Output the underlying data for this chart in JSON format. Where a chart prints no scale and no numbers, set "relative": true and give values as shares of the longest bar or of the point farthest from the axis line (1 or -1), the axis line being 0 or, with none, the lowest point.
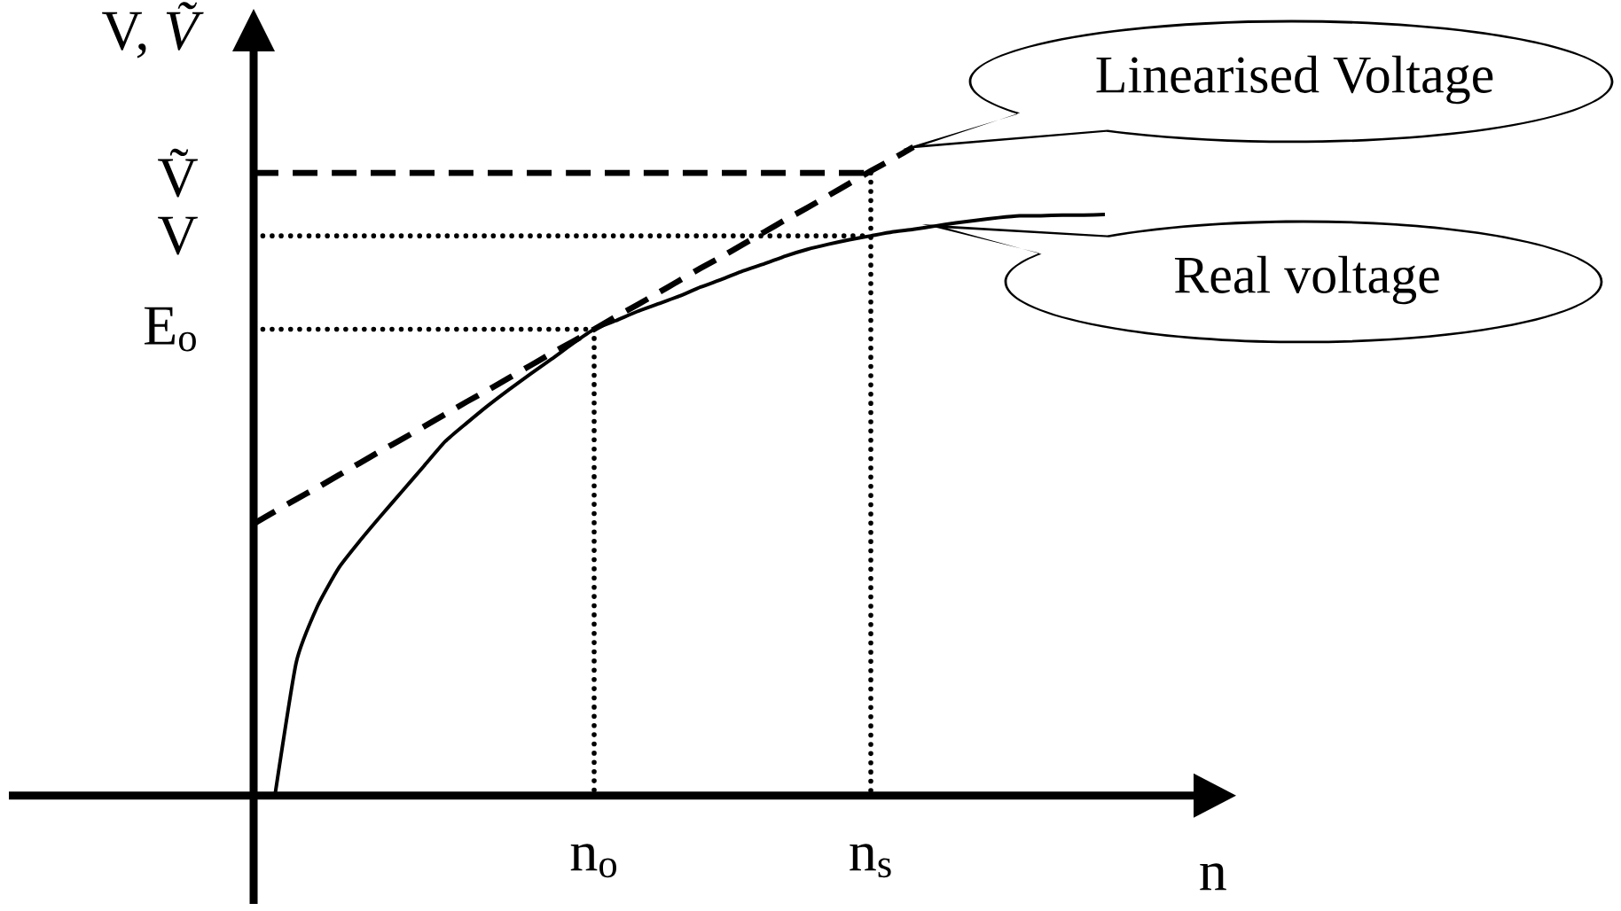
{
  "chart_data": {
    "type": "line",
    "relative": true,
    "xlabel": "n",
    "ylabel": "V, *Ṽ*",
    "categories": [
      null,
      null,
      null,
      null,
      null,
      null,
      null,
      null,
      null,
      null,
      null,
      null,
      null,
      null,
      null,
      null,
      "n$_{o}$",
      null,
      null,
      null,
      null,
      null,
      null,
      null,
      null,
      null,
      null,
      null,
      null,
      "n$_{s}$",
      null,
      null,
      null,
      null,
      null,
      null,
      null,
      null,
      null,
      null,
      null
    ],
    "annotations": [
      "Ṽ",
      "V",
      "E$_{o}$"
    ],
    "series": [
      {
        "name": "Real voltage",
        "color": "#000000",
        "line_style": "solid",
        "values": [
          null,
          0,
          0.205,
          0.292,
          0.351,
          0.393,
          0.432,
          0.47,
          0.508,
          0.546,
          0.574,
          0.601,
          0.626,
          0.65,
          0.673,
          0.697,
          0.719,
          0.732,
          0.746,
          0.758,
          0.77,
          0.784,
          0.796,
          0.809,
          0.82,
          0.832,
          0.842,
          0.85,
          0.857,
          0.863,
          0.869,
          0.873,
          0.878,
          0.883,
          0.887,
          0.891,
          0.894,
          0.894,
          0.895,
          0.895,
          0.896
        ]
      },
      {
        "name": "Linearised Voltage",
        "color": "#000000",
        "line_style": "dashed",
        "values": [
          0.419,
          0.438,
          0.457,
          0.475,
          0.494,
          0.513,
          0.532,
          0.55,
          0.569,
          0.588,
          0.607,
          0.625,
          0.644,
          0.663,
          0.682,
          0.7,
          0.719,
          0.738,
          0.756,
          0.775,
          0.794,
          0.813,
          0.831,
          0.85,
          0.869,
          0.888,
          0.906,
          0.925,
          0.944,
          0.963,
          0.981,
          1.0,
          null,
          null,
          null,
          null,
          null,
          null,
          null,
          null,
          null
        ]
      },
      {
        "color": "#000000",
        "line_style": "dashed",
        "values": [
          0.96,
          0.96,
          0.96,
          0.96,
          0.96,
          0.96,
          0.96,
          0.96,
          0.96,
          0.96,
          0.96,
          0.96,
          0.96,
          0.96,
          0.96,
          0.96,
          0.96,
          0.96,
          0.96,
          0.96,
          0.96,
          0.96,
          0.96,
          0.96,
          0.96,
          0.96,
          0.96,
          0.96,
          0.96,
          0.96,
          null,
          null,
          null,
          null,
          null,
          null,
          null,
          null,
          null,
          null,
          null
        ]
      },
      {
        "color": "#000000",
        "line_style": "dotted",
        "values": [
          0.863,
          0.863,
          0.863,
          0.863,
          0.863,
          0.863,
          0.863,
          0.863,
          0.863,
          0.863,
          0.863,
          0.863,
          0.863,
          0.863,
          0.863,
          0.863,
          0.863,
          0.863,
          0.863,
          0.863,
          0.863,
          0.863,
          0.863,
          0.863,
          0.863,
          0.863,
          0.863,
          0.863,
          0.863,
          0.863,
          null,
          null,
          null,
          null,
          null,
          null,
          null,
          null,
          null,
          null,
          null
        ]
      },
      {
        "color": "#000000",
        "line_style": "dotted",
        "values": [
          0.719,
          0.719,
          0.719,
          0.719,
          0.719,
          0.719,
          0.719,
          0.719,
          0.719,
          0.719,
          0.719,
          0.719,
          0.719,
          0.719,
          0.719,
          0.719,
          0.719,
          null,
          null,
          null,
          null,
          null,
          null,
          null,
          null,
          null,
          null,
          null,
          null,
          null,
          null,
          null,
          null,
          null,
          null,
          null,
          null,
          null,
          null,
          null,
          null
        ]
      },
      {
        "color": "#000000",
        "line_style": "dotted",
        "x": [
          "n$_{o}$",
          "n$_{o}$"
        ],
        "values": [
          0.719,
          0
        ]
      },
      {
        "color": "#000000",
        "line_style": "dotted",
        "x": [
          "n$_{s}$",
          "n$_{s}$"
        ],
        "values": [
          0.96,
          0
        ]
      }
    ]
  }
}
